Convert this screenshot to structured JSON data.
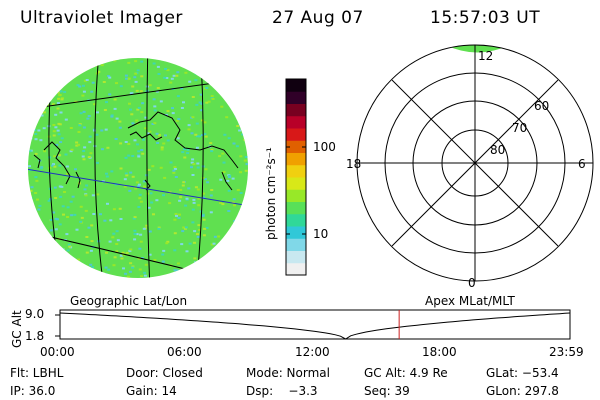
{
  "header": {
    "instrument": "Ultraviolet Imager",
    "date": "27 Aug 07",
    "time": "15:57:03 UT"
  },
  "images": {
    "left_caption": "Geographic Lat/Lon",
    "right_caption": "Apex MLat/MLT"
  },
  "colorbar": {
    "unit_label": "photon cm⁻²s⁻¹",
    "ticks": [
      "100",
      "10"
    ],
    "tick_values": [
      100,
      10
    ],
    "colors": [
      "#f0f0f0",
      "#c8e8f0",
      "#80d8e8",
      "#30c8d8",
      "#30d898",
      "#58e058",
      "#98e828",
      "#d8e818",
      "#f0d010",
      "#f0a000",
      "#e06000",
      "#d81818",
      "#b80028",
      "#780020",
      "#300028",
      "#100010"
    ]
  },
  "polar": {
    "mlat_labels": [
      "60",
      "70",
      "80"
    ],
    "mlt_labels": {
      "top": "12",
      "left": "18",
      "right": "6",
      "bottom": "0"
    }
  },
  "altitude_plot": {
    "ylabel": "GC Alt",
    "yticks": [
      "9.0",
      "1.8"
    ],
    "xticks": [
      "00:00",
      "06:00",
      "12:00",
      "18:00",
      "23:59"
    ],
    "min_time_fraction": 0.56,
    "current_time_fraction": 0.665
  },
  "info": {
    "flt": "Flt: LBHL",
    "door": "Door: Closed",
    "mode": "Mode: Normal",
    "gc_alt": "GC Alt: 4.9 Re",
    "glat": "GLat: −53.4",
    "ip": "IP: 36.0",
    "gain": "Gain: 14",
    "dsp": "Dsp:    −3.3",
    "seq": "Seq: 39",
    "glon": "GLon: 297.8"
  },
  "style": {
    "green": "#60e050",
    "blue_line": "#2030c0",
    "red_marker": "#cc2020"
  }
}
